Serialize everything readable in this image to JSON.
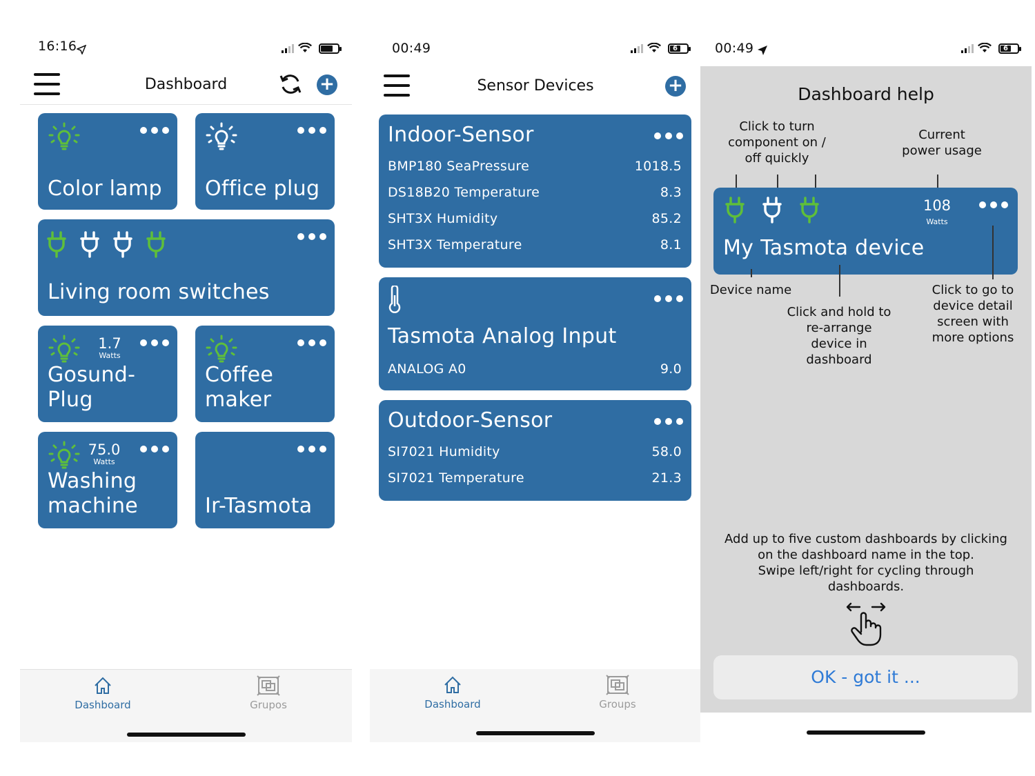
{
  "colors": {
    "tile": "#2f6da3",
    "green": "#5fbf3a",
    "accent_blue": "#2f6da3",
    "link_blue": "#2f7bd6"
  },
  "screen1": {
    "status_time": "16:16",
    "title": "Dashboard",
    "tiles": [
      {
        "name": "Color lamp",
        "icon": "bulb-icon"
      },
      {
        "name": "Office plug",
        "icon": "bulb-icon"
      },
      {
        "name": "Living room switches",
        "icon": "plug-icon"
      },
      {
        "name": "Gosund-Plug",
        "name_l1": "Gosund-",
        "name_l2": "Plug",
        "power": "1.7",
        "unit": "Watts"
      },
      {
        "name": "Coffee maker",
        "name_l1": "Coffee",
        "name_l2": "maker"
      },
      {
        "name": "Washing machine",
        "name_l1": "Washing",
        "name_l2": "machine",
        "power": "75.0",
        "unit": "Watts"
      },
      {
        "name": "Ir-Tasmota"
      }
    ],
    "tabs": [
      {
        "label": "Dashboard"
      },
      {
        "label": "Grupos"
      }
    ]
  },
  "screen2": {
    "status_time": "00:49",
    "battery": "6",
    "title": "Sensor Devices",
    "sensors": [
      {
        "name": "Indoor-Sensor",
        "rows": [
          {
            "label": "BMP180 SeaPressure",
            "value": "1018.5"
          },
          {
            "label": "DS18B20 Temperature",
            "value": "8.3"
          },
          {
            "label": "SHT3X Humidity",
            "value": "85.2"
          },
          {
            "label": "SHT3X Temperature",
            "value": "8.1"
          }
        ]
      },
      {
        "name": "Tasmota Analog Input",
        "rows": [
          {
            "label": "ANALOG A0",
            "value": "9.0"
          }
        ]
      },
      {
        "name": "Outdoor-Sensor",
        "rows": [
          {
            "label": "SI7021 Humidity",
            "value": "58.0"
          },
          {
            "label": "SI7021 Temperature",
            "value": "21.3"
          }
        ]
      }
    ],
    "tabs": [
      {
        "label": "Dashboard"
      },
      {
        "label": "Groups"
      }
    ]
  },
  "screen3": {
    "status_time": "00:49",
    "battery": "6",
    "title": "Dashboard help",
    "ann_toggle": [
      "Click to turn",
      "component on /",
      "off quickly"
    ],
    "ann_power": [
      "Current",
      "power usage"
    ],
    "example_power": "108",
    "example_unit": "Watts",
    "example_name": "My Tasmota device",
    "ann_name": "Device name",
    "ann_hold": [
      "Click and hold to",
      "re-arrange",
      "device in",
      "dashboard"
    ],
    "ann_detail": [
      "Click to go to",
      "device detail",
      "screen with",
      "more options"
    ],
    "footer": [
      "Add up to five custom dashboards by clicking",
      "on the dashboard name in the top.",
      "Swipe left/right for cycling through",
      "dashboards."
    ],
    "ok_label": "OK - got it ..."
  }
}
